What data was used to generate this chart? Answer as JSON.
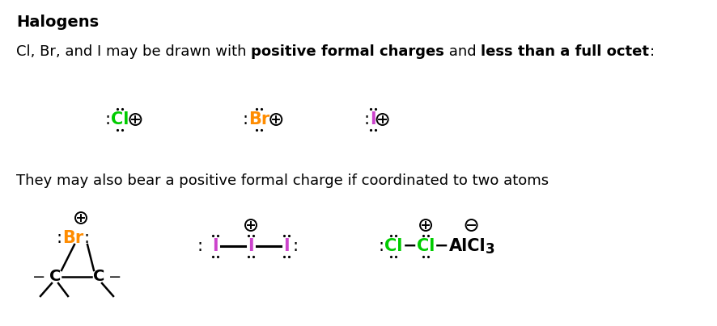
{
  "title": "Halogens",
  "line1_plain": "Cl, Br, and I may be drawn with ",
  "line1_bold1": "positive formal charges",
  "line1_mid": " and ",
  "line1_bold2": "less than a full octet",
  "line1_end": ":",
  "line2": "They may also bear a positive formal charge if coordinated to two atoms",
  "cl_color": "#00cc00",
  "br_color": "#ff8c00",
  "i_color": "#cc44cc",
  "black": "#000000",
  "bg_color": "#ffffff",
  "font_size": 13,
  "title_font_size": 14
}
